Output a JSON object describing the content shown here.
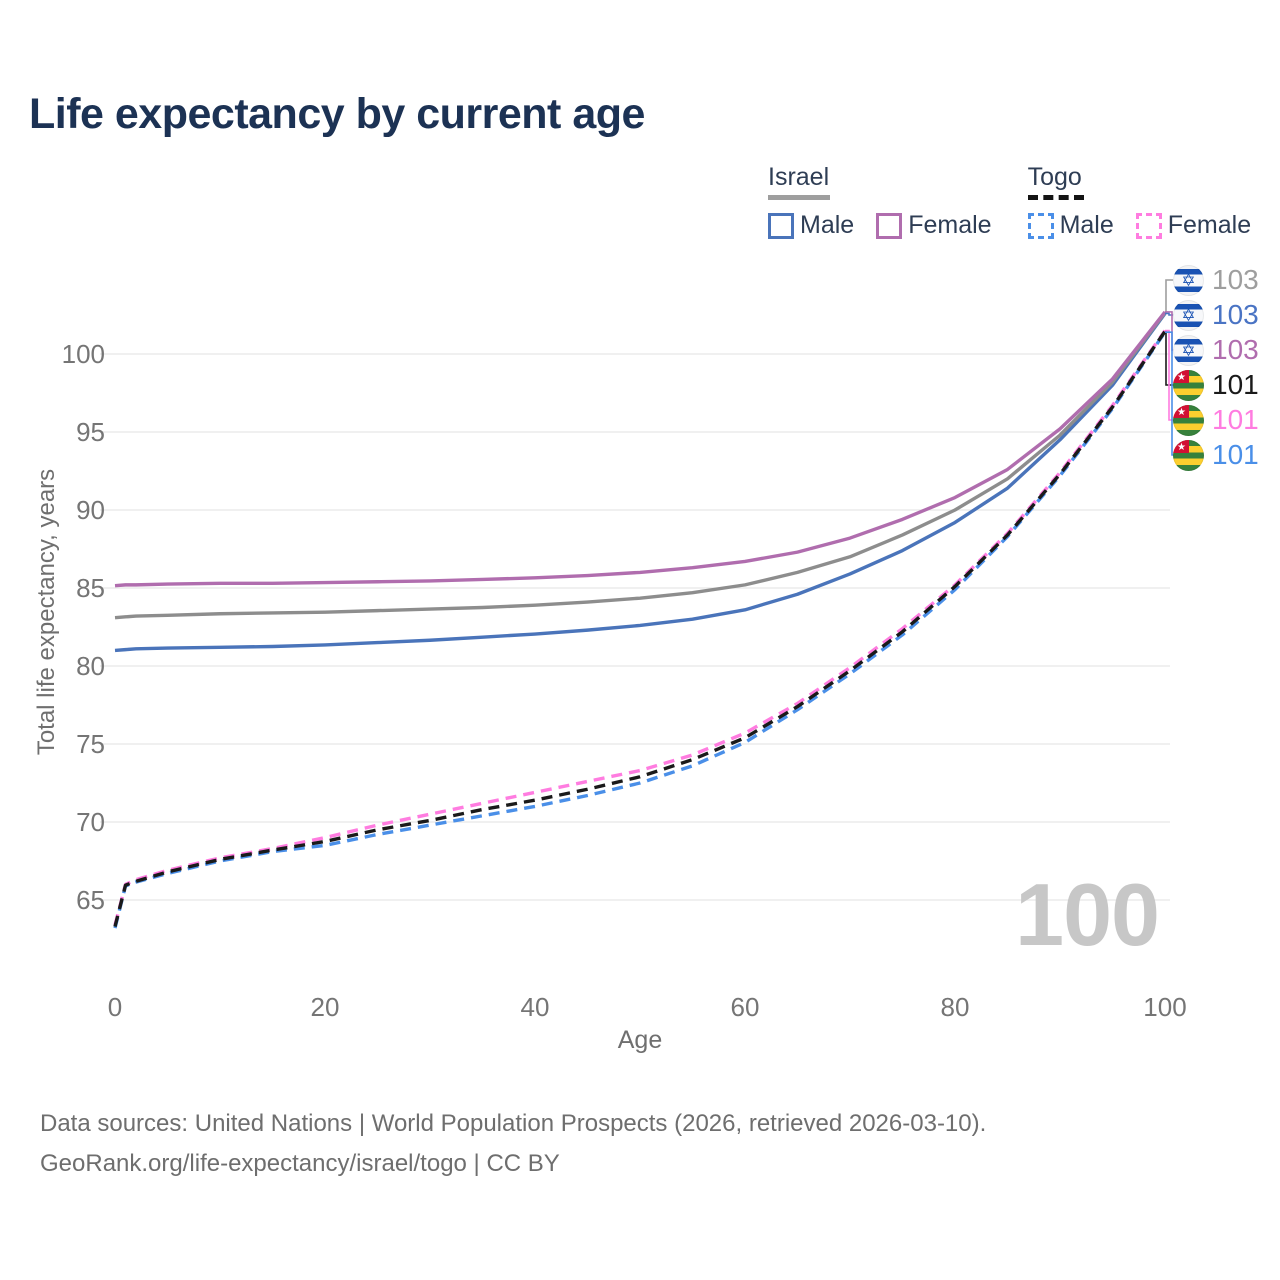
{
  "title": "Life expectancy by current age",
  "watermark": "100",
  "legend": {
    "israel": {
      "label": "Israel",
      "male": "Male",
      "female": "Female"
    },
    "togo": {
      "label": "Togo",
      "male": "Male",
      "female": "Female"
    }
  },
  "footer": {
    "line1": "Data sources: United Nations | World Population Prospects (2026, retrieved 2026-03-10).",
    "line2": "GeoRank.org/life-expectancy/israel/togo | CC BY"
  },
  "colors": {
    "title": "#1c3254",
    "axis_text": "#757575",
    "axis_title": "#6f6f6f",
    "grid": "#e7e7e7",
    "watermark": "#c7c7c7",
    "israel_underline": "#9e9e9e",
    "togo_underline": "#141414"
  },
  "chart_data": {
    "type": "line",
    "title": "Life expectancy by current age",
    "xlabel": "Age",
    "ylabel": "Total life expectancy, years",
    "xlim": [
      0,
      100
    ],
    "ylim": [
      62,
      104
    ],
    "xticks": [
      0,
      20,
      40,
      60,
      80,
      100
    ],
    "yticks": [
      65,
      70,
      75,
      80,
      85,
      90,
      95,
      100
    ],
    "grid": "horizontal",
    "legend_position": "top-right",
    "x_common": [
      0,
      1,
      2,
      5,
      10,
      15,
      20,
      25,
      30,
      35,
      40,
      45,
      50,
      55,
      60,
      65,
      70,
      75,
      80,
      85,
      90,
      95,
      100
    ],
    "series": [
      {
        "name": "Israel Male",
        "country": "Israel",
        "sex": "male",
        "style": "solid",
        "color": "#4a74ba",
        "x": [
          0,
          1,
          2,
          5,
          10,
          15,
          20,
          25,
          30,
          35,
          40,
          45,
          50,
          55,
          60,
          65,
          70,
          75,
          80,
          85,
          90,
          95,
          100
        ],
        "y": [
          81.0,
          81.05,
          81.1,
          81.15,
          81.2,
          81.25,
          81.35,
          81.5,
          81.65,
          81.85,
          82.05,
          82.3,
          82.6,
          83.0,
          83.6,
          84.6,
          85.9,
          87.4,
          89.2,
          91.4,
          94.5,
          98.0,
          102.6
        ]
      },
      {
        "name": "Israel Total",
        "country": "Israel",
        "sex": "both",
        "style": "solid",
        "color": "#8d8d8d",
        "x": [
          0,
          1,
          2,
          5,
          10,
          15,
          20,
          25,
          30,
          35,
          40,
          45,
          50,
          55,
          60,
          65,
          70,
          75,
          80,
          85,
          90,
          95,
          100
        ],
        "y": [
          83.1,
          83.15,
          83.2,
          83.25,
          83.35,
          83.4,
          83.45,
          83.55,
          83.65,
          83.75,
          83.9,
          84.1,
          84.35,
          84.7,
          85.2,
          86.0,
          87.0,
          88.4,
          90.0,
          92.0,
          94.8,
          98.2,
          102.65
        ]
      },
      {
        "name": "Israel Female",
        "country": "Israel",
        "sex": "female",
        "style": "solid",
        "color": "#b06dae",
        "x": [
          0,
          1,
          2,
          5,
          10,
          15,
          20,
          25,
          30,
          35,
          40,
          45,
          50,
          55,
          60,
          65,
          70,
          75,
          80,
          85,
          90,
          95,
          100
        ],
        "y": [
          85.15,
          85.2,
          85.2,
          85.25,
          85.3,
          85.3,
          85.35,
          85.4,
          85.45,
          85.55,
          85.65,
          85.8,
          86.0,
          86.3,
          86.7,
          87.3,
          88.2,
          89.4,
          90.8,
          92.6,
          95.2,
          98.4,
          102.7
        ]
      },
      {
        "name": "Togo Male",
        "country": "Togo",
        "sex": "male",
        "style": "dashed",
        "color": "#4a8fe8",
        "x": [
          0,
          1,
          2,
          5,
          10,
          15,
          20,
          25,
          30,
          35,
          40,
          45,
          50,
          55,
          60,
          65,
          70,
          75,
          80,
          85,
          90,
          95,
          100
        ],
        "y": [
          63.2,
          65.9,
          66.15,
          66.7,
          67.5,
          68.1,
          68.5,
          69.2,
          69.8,
          70.4,
          71.0,
          71.7,
          72.5,
          73.6,
          75.1,
          77.2,
          79.5,
          82.0,
          84.9,
          88.3,
          92.2,
          96.5,
          101.4
        ]
      },
      {
        "name": "Togo Female",
        "country": "Togo",
        "sex": "female",
        "style": "dashed",
        "color": "#ff7ce0",
        "x": [
          0,
          1,
          2,
          5,
          10,
          15,
          20,
          25,
          30,
          35,
          40,
          45,
          50,
          55,
          60,
          65,
          70,
          75,
          80,
          85,
          90,
          95,
          100
        ],
        "y": [
          63.4,
          66.0,
          66.3,
          66.9,
          67.7,
          68.3,
          69.0,
          69.8,
          70.5,
          71.2,
          71.9,
          72.6,
          73.3,
          74.3,
          75.7,
          77.6,
          79.9,
          82.4,
          85.2,
          88.5,
          92.4,
          96.7,
          101.5
        ]
      },
      {
        "name": "Togo Total",
        "country": "Togo",
        "sex": "both",
        "style": "dashed",
        "color": "#1a1a1a",
        "x": [
          0,
          1,
          2,
          5,
          10,
          15,
          20,
          25,
          30,
          35,
          40,
          45,
          50,
          55,
          60,
          65,
          70,
          75,
          80,
          85,
          90,
          95,
          100
        ],
        "y": [
          63.3,
          65.95,
          66.2,
          66.8,
          67.6,
          68.2,
          68.75,
          69.5,
          70.1,
          70.8,
          71.4,
          72.1,
          72.9,
          74.0,
          75.4,
          77.4,
          79.7,
          82.2,
          85.1,
          88.4,
          92.3,
          96.6,
          101.45
        ]
      }
    ],
    "right_labels": [
      {
        "flag": "israel",
        "value": "103",
        "color": "#9e9e9e",
        "series": 1
      },
      {
        "flag": "israel",
        "value": "103",
        "color": "#4a74c4",
        "series": 0
      },
      {
        "flag": "israel",
        "value": "103",
        "color": "#b06dae",
        "series": 2
      },
      {
        "flag": "togo",
        "value": "101",
        "color": "#1a1a1a",
        "series": 5
      },
      {
        "flag": "togo",
        "value": "101",
        "color": "#ff7ce0",
        "series": 4
      },
      {
        "flag": "togo",
        "value": "101",
        "color": "#4a8fe8",
        "series": 3
      }
    ]
  }
}
